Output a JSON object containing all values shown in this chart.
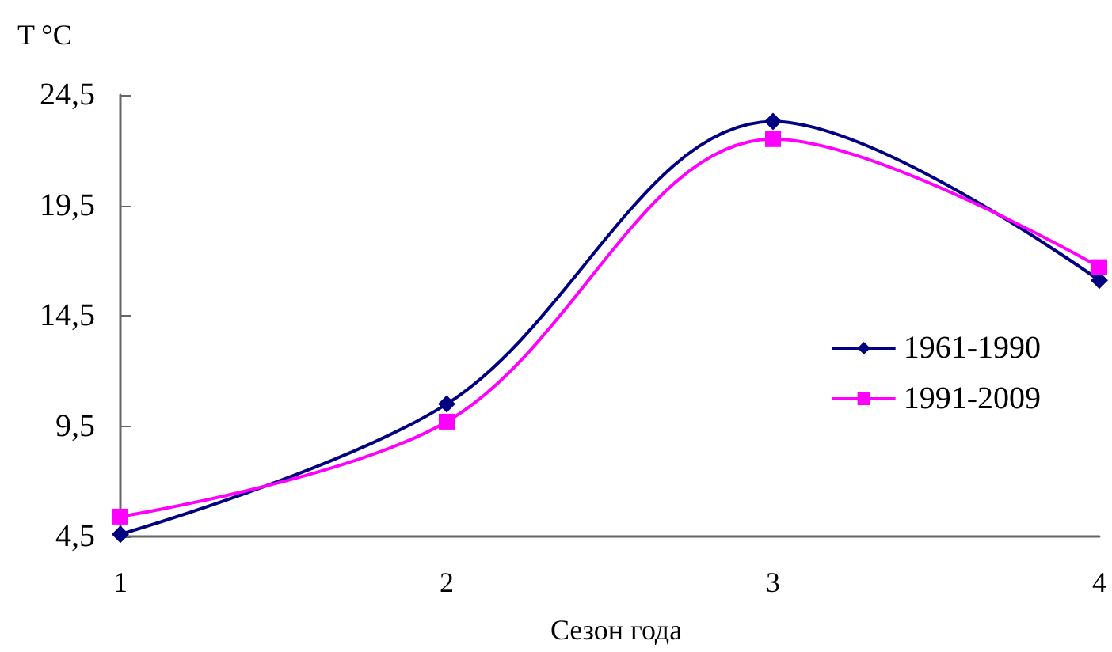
{
  "chart_data": {
    "type": "line",
    "ylabel": "T °C",
    "xlabel": "Сезон года",
    "categories": [
      "1",
      "2",
      "3",
      "4"
    ],
    "series": [
      {
        "name": "1961-1990",
        "color": "#000080",
        "marker": "diamond",
        "values": [
          4.6,
          10.5,
          23.3,
          16.1
        ]
      },
      {
        "name": "1991-2009",
        "color": "#ff00ff",
        "marker": "square",
        "values": [
          5.4,
          9.7,
          22.5,
          16.7
        ]
      }
    ],
    "ylim": [
      4.5,
      24.5
    ],
    "yticks": [
      {
        "value": 4.5,
        "label": "4,5"
      },
      {
        "value": 9.5,
        "label": "9,5"
      },
      {
        "value": 14.5,
        "label": "14,5"
      },
      {
        "value": 19.5,
        "label": "19,5"
      },
      {
        "value": 24.5,
        "label": "24,5"
      }
    ],
    "grid": false,
    "legend": "right"
  }
}
